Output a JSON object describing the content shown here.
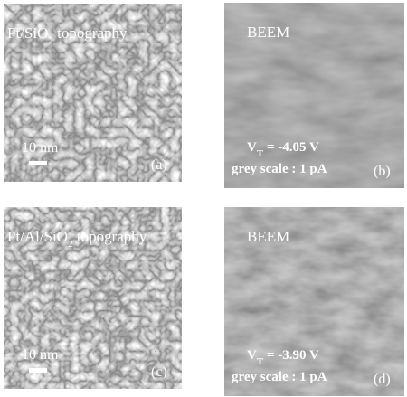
{
  "panels": [
    {
      "kind": "topography",
      "title": [
        "Pt/SiO",
        "2",
        " topography"
      ],
      "scale_bar": "10 nm",
      "tag": "(a)"
    },
    {
      "kind": "beem",
      "title": [
        "BEEM"
      ],
      "voltage": [
        "V",
        "T",
        " = -4.05 V"
      ],
      "grey_scale": "grey scale : 1 pA",
      "tag": "(b)"
    },
    {
      "kind": "topography",
      "title": [
        "Pt/Al/SiO",
        "2",
        " topography"
      ],
      "scale_bar": "10 nm",
      "tag": "(c)"
    },
    {
      "kind": "beem",
      "title": [
        "BEEM"
      ],
      "voltage": [
        "V",
        "T",
        " = -3.90 V"
      ],
      "grey_scale": "grey scale : 1 pA",
      "tag": "(d)"
    }
  ]
}
